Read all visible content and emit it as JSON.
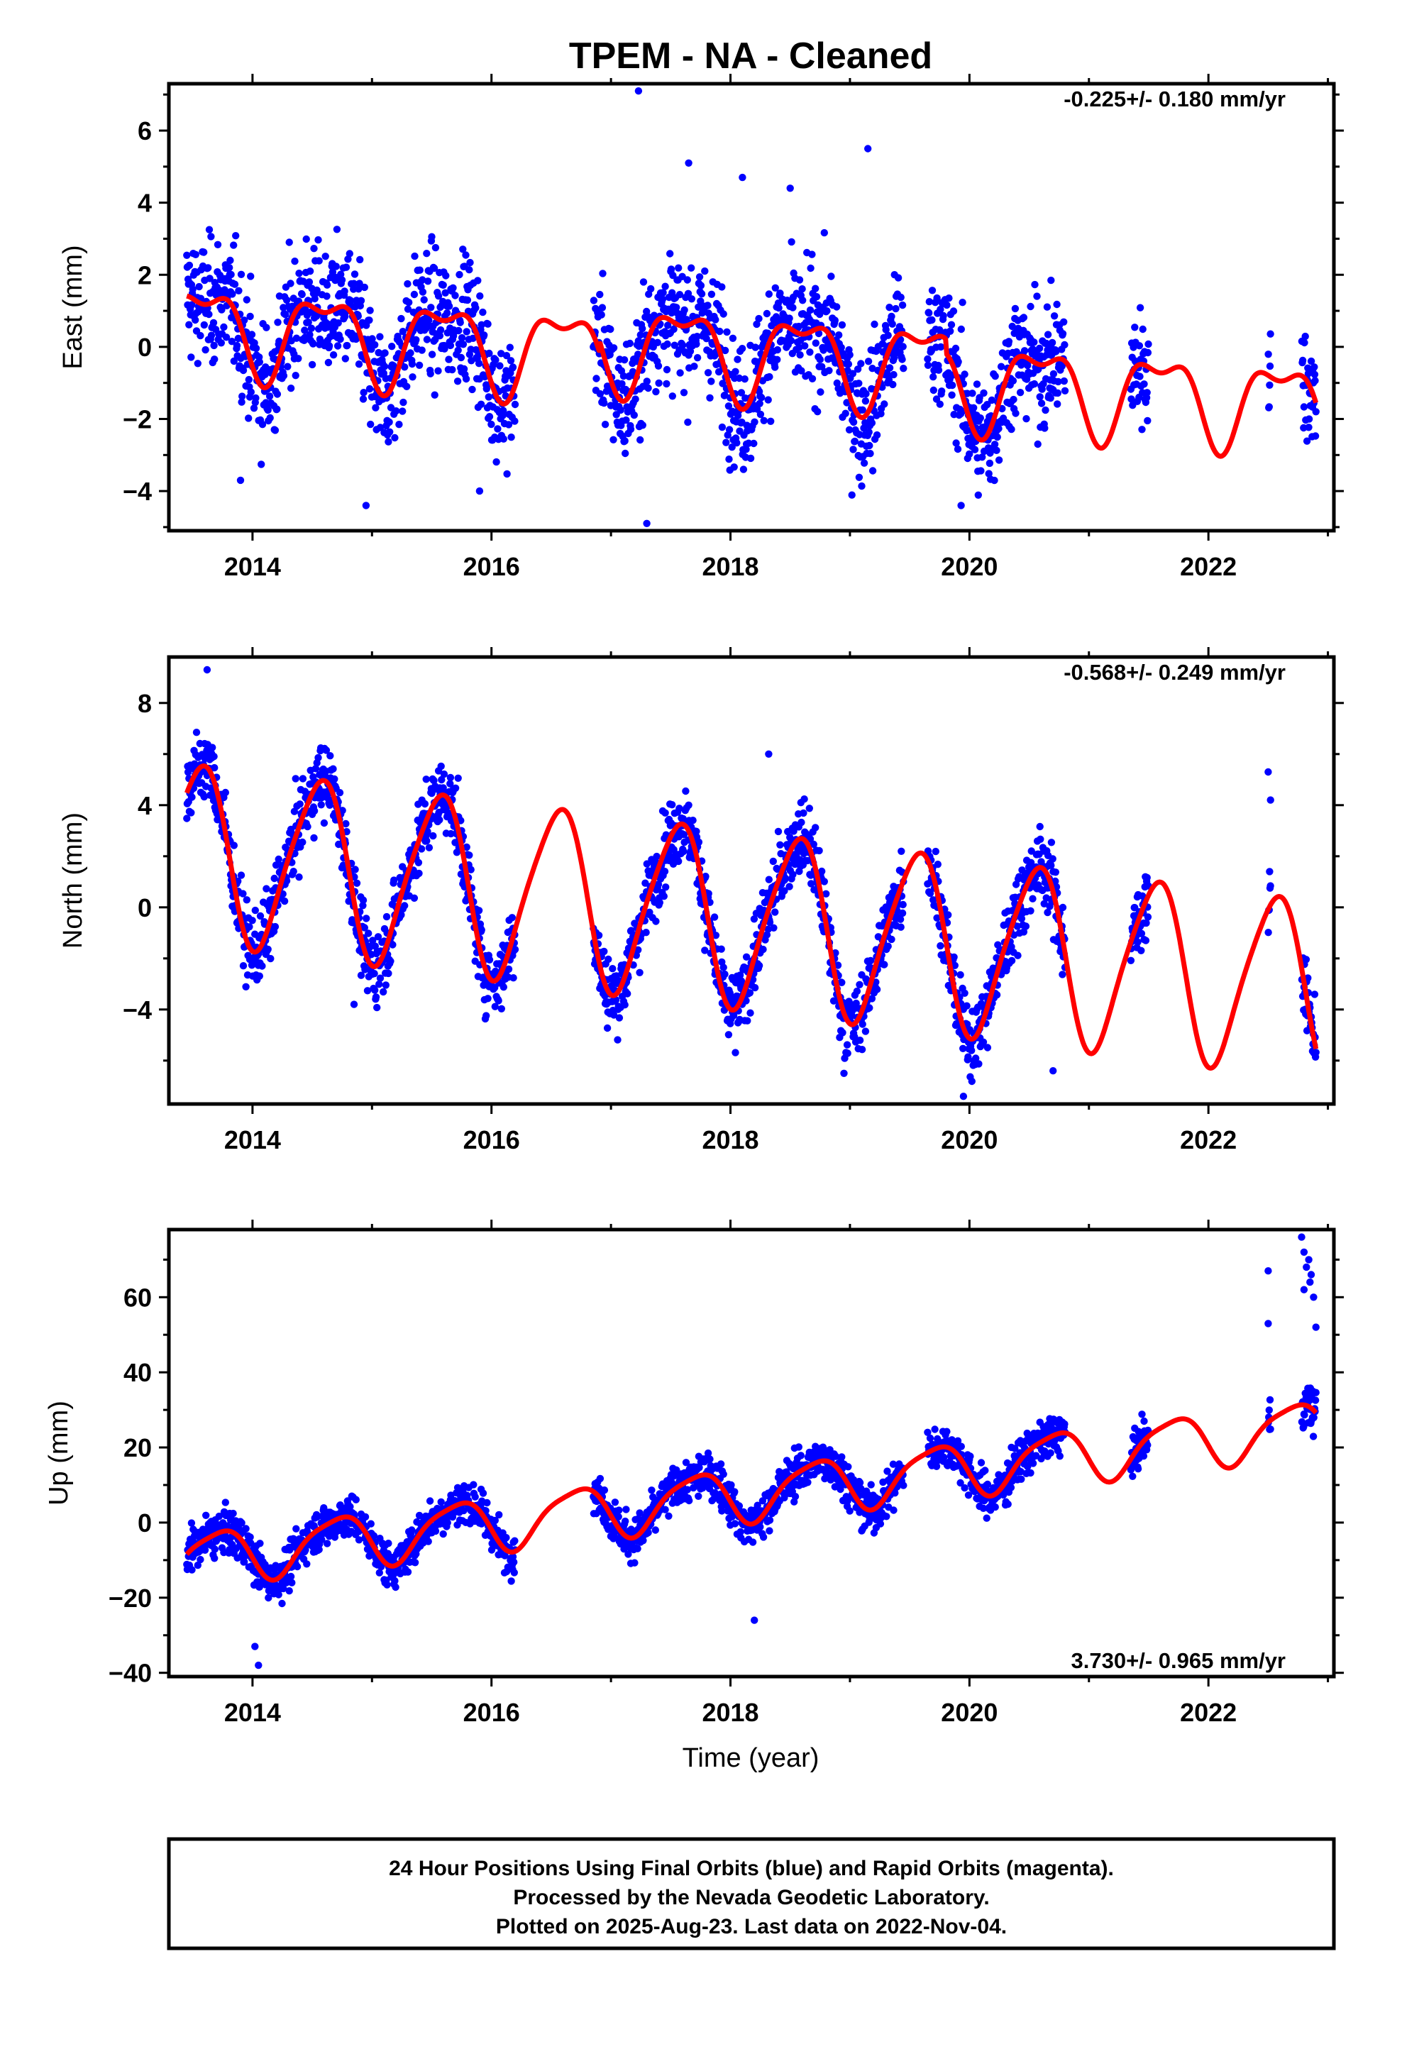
{
  "title": "TPEM  - NA - Cleaned",
  "xlabel": "Time (year)",
  "footer": {
    "line1": "24 Hour Positions Using Final Orbits (blue) and Rapid Orbits (magenta).",
    "line2": "Processed by the Nevada Geodetic Laboratory.",
    "line3": "Plotted on 2025-Aug-23. Last data on 2022-Nov-04."
  },
  "colors": {
    "points": "#0000ff",
    "fit": "#ff0000",
    "frame": "#000000"
  },
  "chart_data": [
    {
      "type": "scatter",
      "name": "East",
      "ylabel": "East (mm)",
      "rate_label": "-0.225+/- 0.180 mm/yr",
      "xlim": [
        2013.3,
        2023.05
      ],
      "ylim": [
        -5.1,
        7.3
      ],
      "xticks": [
        2014,
        2016,
        2018,
        2020,
        2022
      ],
      "yticks": [
        -4,
        -2,
        0,
        2,
        4,
        6
      ],
      "fit": {
        "trend_mm_per_yr": -0.225,
        "intercept_mm": 0.6,
        "annual": [
          1.1,
          2013.6
        ],
        "semiannual": [
          0.5,
          2013.85
        ],
        "offset_years": [
          2016.9,
          2019.8
        ],
        "offset_mm": [
          0.3,
          -0.4
        ]
      },
      "point_scatter_mm": 1.2,
      "series": [
        {
          "name": "Final Orbits",
          "color": "blue"
        },
        {
          "name": "Model",
          "color": "red"
        }
      ],
      "outliers": [
        [
          2017.23,
          7.1
        ],
        [
          2017.65,
          5.1
        ],
        [
          2018.1,
          4.7
        ],
        [
          2018.5,
          4.4
        ],
        [
          2019.15,
          5.5
        ],
        [
          2017.3,
          -4.9
        ],
        [
          2014.95,
          -4.4
        ],
        [
          2019.93,
          -4.4
        ],
        [
          2015.9,
          -4.0
        ],
        [
          2013.9,
          -3.7
        ]
      ]
    },
    {
      "type": "scatter",
      "name": "North",
      "ylabel": "North (mm)",
      "rate_label": "-0.568+/- 0.249 mm/yr",
      "xlim": [
        2013.3,
        2023.05
      ],
      "ylim": [
        -7.7,
        9.8
      ],
      "xticks": [
        2014,
        2016,
        2018,
        2020,
        2022
      ],
      "yticks": [
        -4,
        0,
        4,
        8
      ],
      "fit": {
        "trend_mm_per_yr": -0.568,
        "intercept_mm": 2.2,
        "annual": [
          3.4,
          2013.55
        ],
        "semiannual": [
          0.5,
          2013.7
        ],
        "offset_years": [],
        "offset_mm": []
      },
      "point_scatter_mm": 1.0,
      "series": [
        {
          "name": "Final Orbits",
          "color": "blue"
        },
        {
          "name": "Model",
          "color": "red"
        }
      ],
      "outliers": [
        [
          2013.62,
          9.3
        ],
        [
          2018.32,
          6.0
        ],
        [
          2022.5,
          5.3
        ],
        [
          2022.52,
          4.2
        ],
        [
          2019.95,
          -7.4
        ],
        [
          2020.7,
          -6.4
        ],
        [
          2018.95,
          -6.5
        ],
        [
          2014.85,
          -3.8
        ]
      ]
    },
    {
      "type": "scatter",
      "name": "Up",
      "ylabel": "Up (mm)",
      "rate_label": "3.730+/- 0.965 mm/yr",
      "xlim": [
        2013.3,
        2023.05
      ],
      "ylim": [
        -41,
        78
      ],
      "xticks": [
        2014,
        2016,
        2018,
        2020,
        2022
      ],
      "yticks": [
        -40,
        -20,
        0,
        20,
        40,
        60
      ],
      "fit": {
        "trend_mm_per_yr": 3.73,
        "intercept_mm": -9.5,
        "annual": [
          7.0,
          2013.7
        ],
        "semiannual": [
          1.5,
          2013.9
        ],
        "offset_years": [],
        "offset_mm": []
      },
      "point_scatter_mm": 4.0,
      "series": [
        {
          "name": "Final Orbits",
          "color": "blue"
        },
        {
          "name": "Model",
          "color": "red"
        }
      ],
      "outliers": [
        [
          2014.02,
          -33
        ],
        [
          2014.05,
          -38
        ],
        [
          2018.2,
          -26
        ],
        [
          2022.5,
          67
        ],
        [
          2022.5,
          53
        ],
        [
          2022.78,
          76
        ],
        [
          2022.8,
          72
        ],
        [
          2022.82,
          68
        ],
        [
          2022.85,
          64
        ],
        [
          2022.88,
          60
        ],
        [
          2022.9,
          52
        ],
        [
          2022.84,
          70
        ],
        [
          2022.86,
          66
        ],
        [
          2022.8,
          62
        ]
      ]
    }
  ],
  "data_windows": [
    [
      2013.45,
      2016.2
    ],
    [
      2016.85,
      2019.45
    ],
    [
      2019.65,
      2020.8
    ],
    [
      2021.35,
      2021.5
    ],
    [
      2022.5,
      2022.52
    ],
    [
      2022.78,
      2022.9
    ]
  ]
}
